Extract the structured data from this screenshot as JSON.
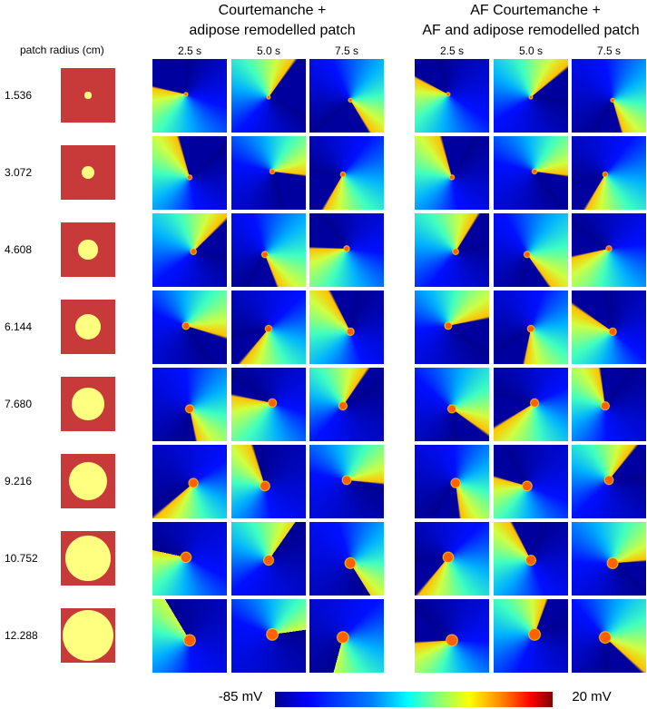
{
  "header": {
    "left_title": [
      "Courtemanche +",
      "adipose remodelled patch"
    ],
    "right_title": [
      "AF Courtemanche +",
      "AF and adipose remodelled patch"
    ],
    "times": [
      "2.5 s",
      "5.0 s",
      "7.5 s"
    ],
    "radius_heading": "patch radius (cm)"
  },
  "rows": [
    {
      "label": "1.536"
    },
    {
      "label": "3.072"
    },
    {
      "label": "4.608"
    },
    {
      "label": "6.144"
    },
    {
      "label": "7.680"
    },
    {
      "label": "9.216"
    },
    {
      "label": "10.752"
    },
    {
      "label": "12.288"
    }
  ],
  "colorbar": {
    "min_label": "-85 mV",
    "max_label": "20 mV"
  }
}
